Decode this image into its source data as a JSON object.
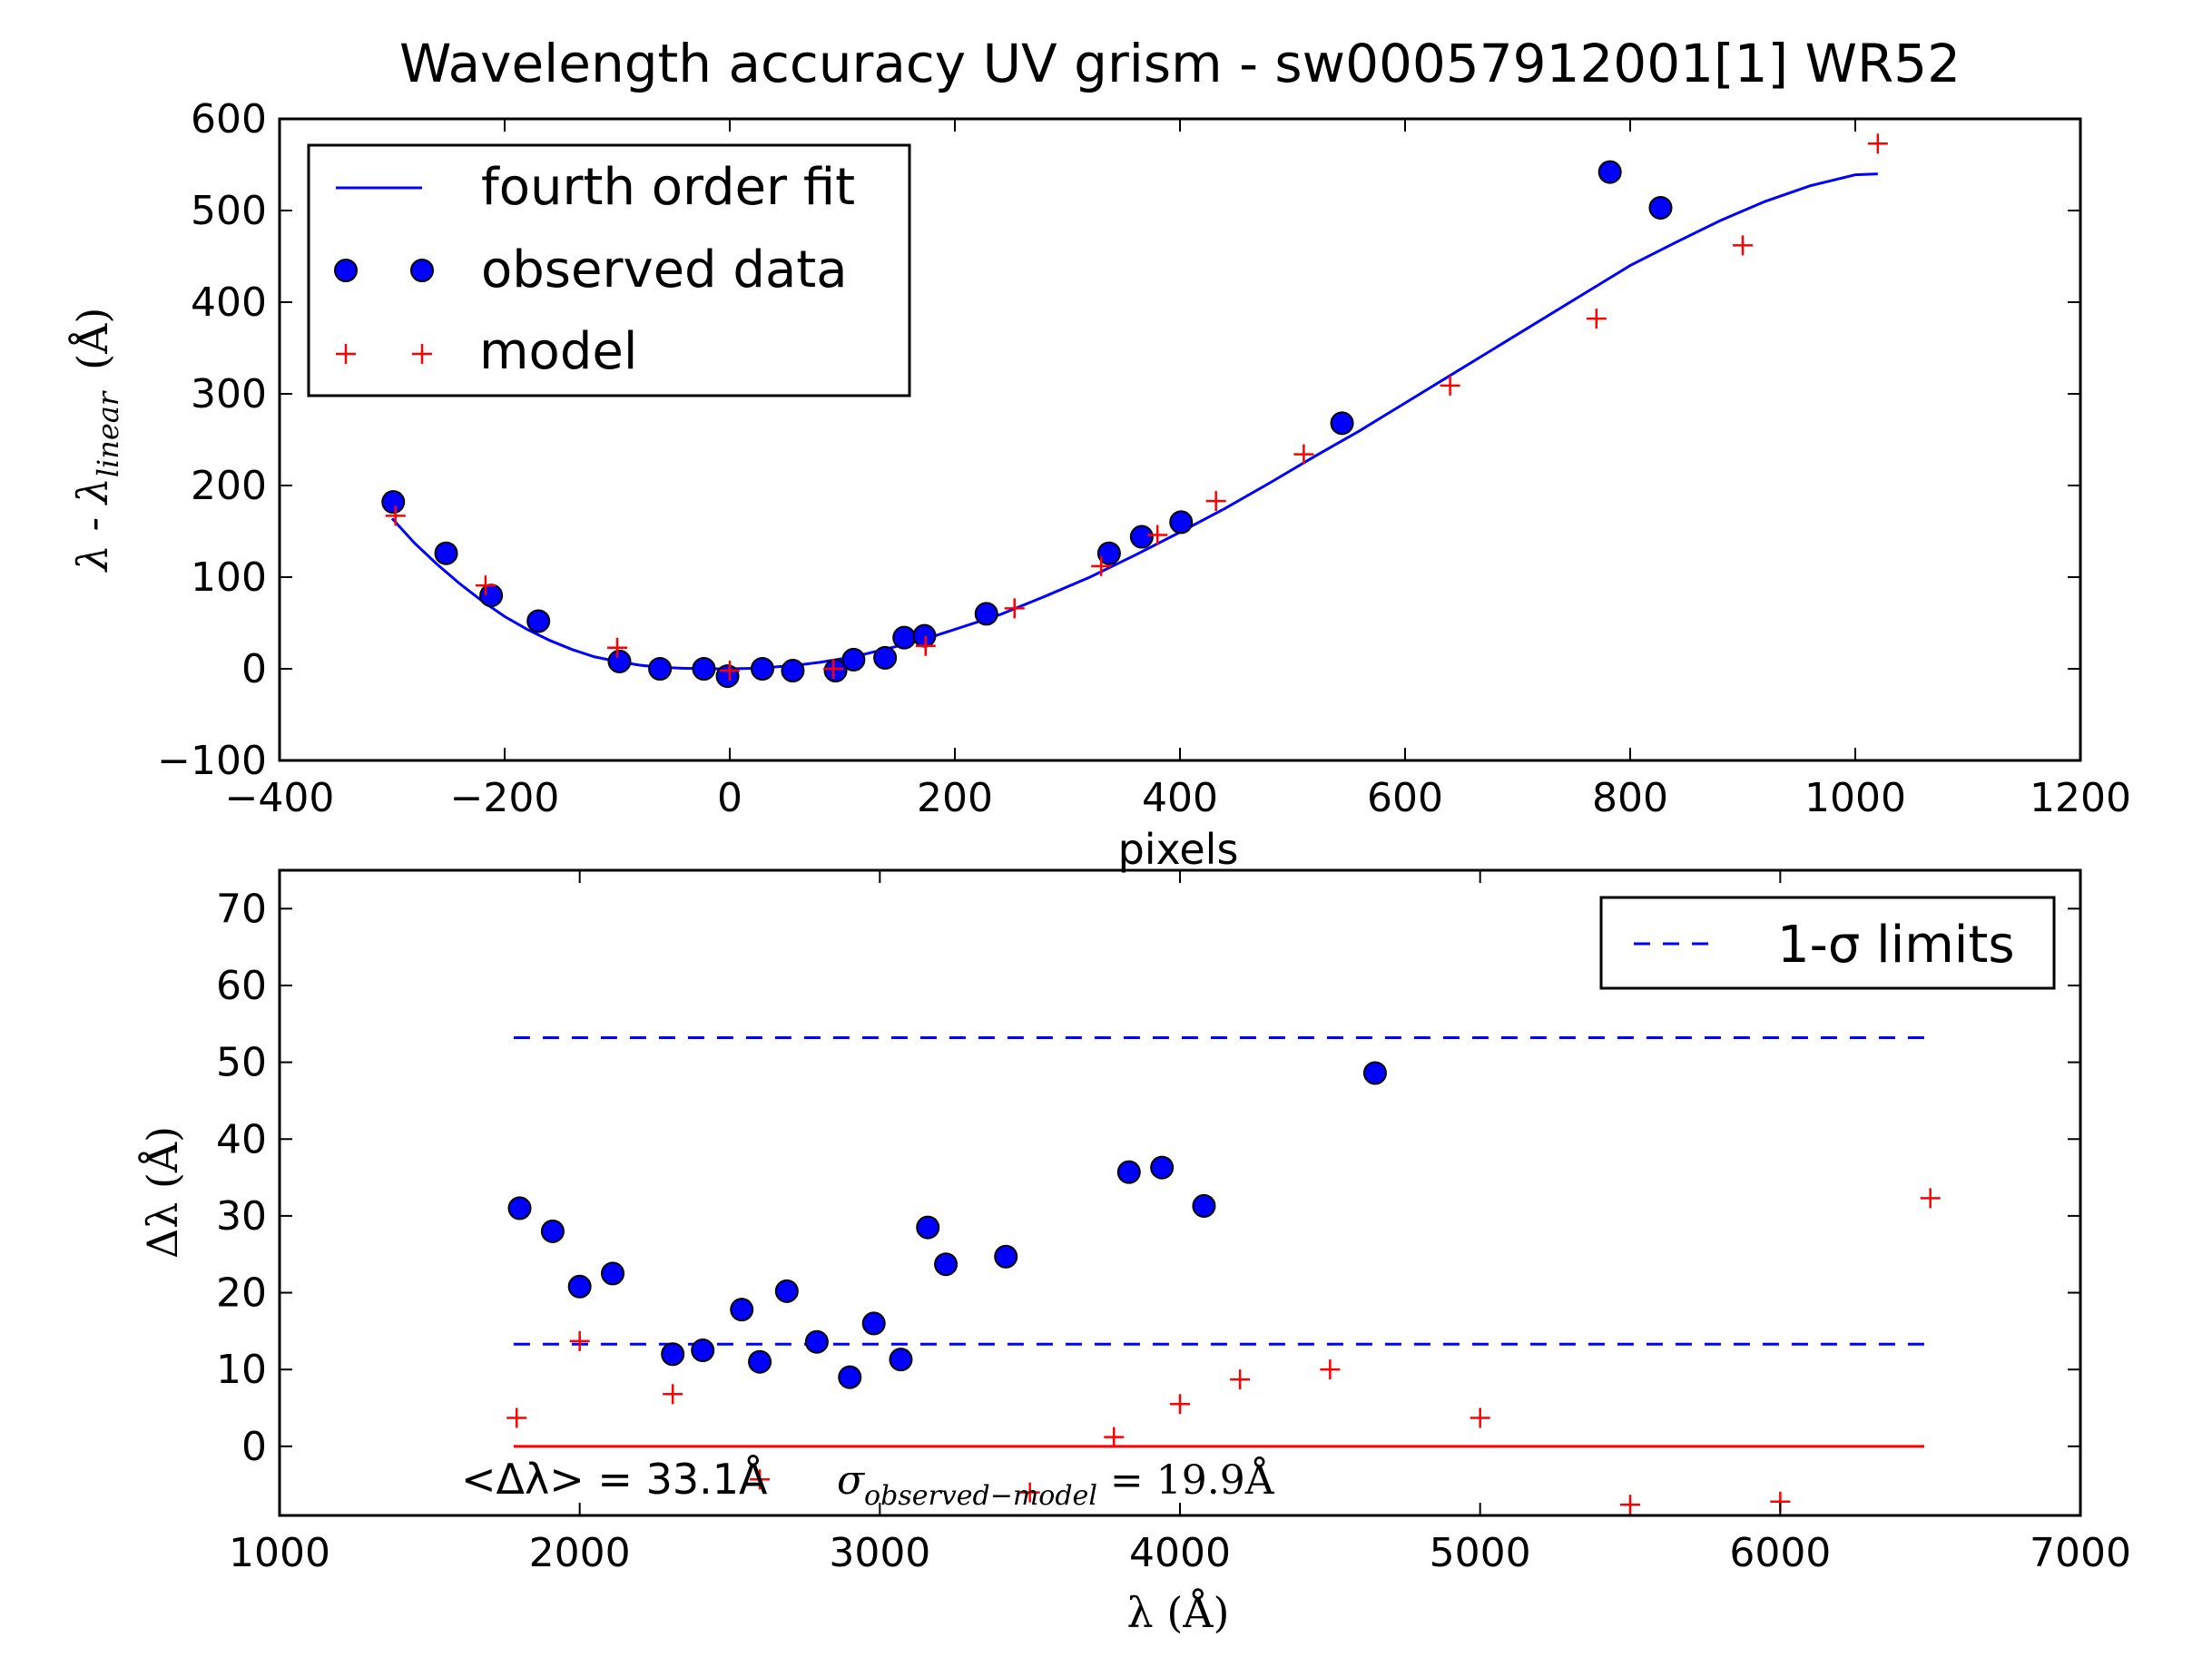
{
  "figure": {
    "title": "Wavelength accuracy UV grism - sw00057912001[1] WR52"
  },
  "chart_data": [
    {
      "type": "scatter",
      "xlabel": "pixels",
      "ylabel_main": "λ - λ",
      "ylabel_sub": "linear",
      "ylabel_unit": "(Å)",
      "xlim": [
        -400,
        1200
      ],
      "ylim": [
        -100,
        600
      ],
      "xticks": [
        -400,
        -200,
        0,
        200,
        400,
        600,
        800,
        1000,
        1200
      ],
      "yticks": [
        -100,
        0,
        100,
        200,
        300,
        400,
        500,
        600
      ],
      "tick_labels_x": [
        "−400",
        "−200",
        "0",
        "200",
        "400",
        "600",
        "800",
        "1000",
        "1200"
      ],
      "tick_labels_y": [
        "−100",
        "0",
        "100",
        "200",
        "300",
        "400",
        "500",
        "600"
      ],
      "legend_position": "top-left",
      "series": [
        {
          "name": "fourth order fit",
          "kind": "line",
          "color": "#0000ff",
          "x": [
            -300,
            -280,
            -260,
            -240,
            -220,
            -200,
            -180,
            -160,
            -140,
            -120,
            -100,
            -80,
            -60,
            -40,
            -20,
            0,
            20,
            40,
            60,
            80,
            100,
            120,
            140,
            160,
            180,
            200,
            240,
            280,
            320,
            360,
            400,
            440,
            480,
            520,
            560,
            600,
            640,
            680,
            720,
            760,
            800,
            840,
            880,
            920,
            960,
            1000,
            1020
          ],
          "y": [
            164,
            137,
            114,
            93,
            74,
            57,
            43,
            31,
            21,
            13,
            8,
            4,
            1.5,
            0.5,
            0,
            0,
            0.5,
            2,
            4,
            7,
            11,
            16,
            22,
            28,
            35,
            43,
            59,
            79,
            100,
            124,
            149,
            175,
            203,
            232,
            260,
            290,
            320,
            350,
            380,
            410,
            440,
            465,
            489,
            510,
            527,
            539,
            540
          ]
        },
        {
          "name": "observed data",
          "kind": "points",
          "color": "#0000ff",
          "x": [
            -299,
            -252,
            -212,
            -170,
            -98,
            -62,
            -23,
            -2,
            29,
            56,
            94,
            110,
            138,
            155,
            173,
            228,
            337,
            366,
            401,
            544,
            782,
            827
          ],
          "y": [
            182,
            126,
            80,
            52,
            8,
            0,
            0,
            -8,
            0,
            -2,
            -2,
            10,
            12,
            34,
            36,
            60,
            126,
            144,
            160,
            268,
            542,
            503
          ]
        },
        {
          "name": "model",
          "kind": "plus",
          "color": "#ff0000",
          "x": [
            -297,
            -217,
            -100,
            0,
            92,
            174,
            253,
            330,
            380,
            432,
            510,
            640,
            770,
            900,
            1020
          ],
          "y": [
            167,
            91,
            23,
            -2,
            0,
            25,
            66,
            112,
            146,
            183,
            234,
            309,
            382,
            462,
            573
          ]
        }
      ]
    },
    {
      "type": "scatter",
      "xlabel": "λ (Å)",
      "ylabel": "Δλ (Å)",
      "xlim": [
        1000,
        7000
      ],
      "ylim": [
        -9,
        75
      ],
      "xticks": [
        1000,
        2000,
        3000,
        4000,
        5000,
        6000,
        7000
      ],
      "yticks": [
        0,
        10,
        20,
        30,
        40,
        50,
        60,
        70
      ],
      "tick_labels_x": [
        "1000",
        "2000",
        "3000",
        "4000",
        "5000",
        "6000",
        "7000"
      ],
      "tick_labels_y": [
        "0",
        "10",
        "20",
        "30",
        "40",
        "50",
        "60",
        "70"
      ],
      "legend_position": "top-right",
      "annotation": {
        "mean_text": "<Δλ> = 33.1Å",
        "sigma_symbol": "σ",
        "sigma_sub": "observed−model",
        "sigma_text": "= 19.9Å"
      },
      "series": [
        {
          "name": "1-σ limits",
          "kind": "dashed",
          "color": "#0000ff",
          "x_range": [
            1780,
            6480
          ],
          "levels": [
            53.2,
            13.3
          ]
        },
        {
          "kind": "line",
          "color": "#ff0000",
          "x_range": [
            1780,
            6480
          ],
          "levels": [
            0
          ]
        },
        {
          "kind": "points",
          "color": "#0000ff",
          "x": [
            1800,
            1910,
            2000,
            2110,
            2310,
            2410,
            2540,
            2600,
            2690,
            2790,
            2900,
            2980,
            3070,
            3160,
            3220,
            3420,
            3830,
            3940,
            4080,
            4650
          ],
          "y": [
            31,
            28,
            20.8,
            22.5,
            12,
            12.5,
            17.8,
            11,
            20.2,
            13.6,
            9,
            16,
            11.3,
            28.5,
            23.7,
            24.7,
            35.7,
            36.3,
            31.3,
            48.6
          ]
        },
        {
          "kind": "plus",
          "color": "#ff0000",
          "x": [
            1790,
            2000,
            2310,
            2600,
            3500,
            3780,
            4000,
            4200,
            4500,
            5000,
            5500,
            6000,
            6500
          ],
          "y": [
            3.7,
            13.7,
            6.8,
            -4.3,
            -6,
            1.2,
            5.5,
            8.7,
            10,
            3.7,
            -7.6,
            -7.2,
            32.3
          ]
        }
      ]
    }
  ]
}
